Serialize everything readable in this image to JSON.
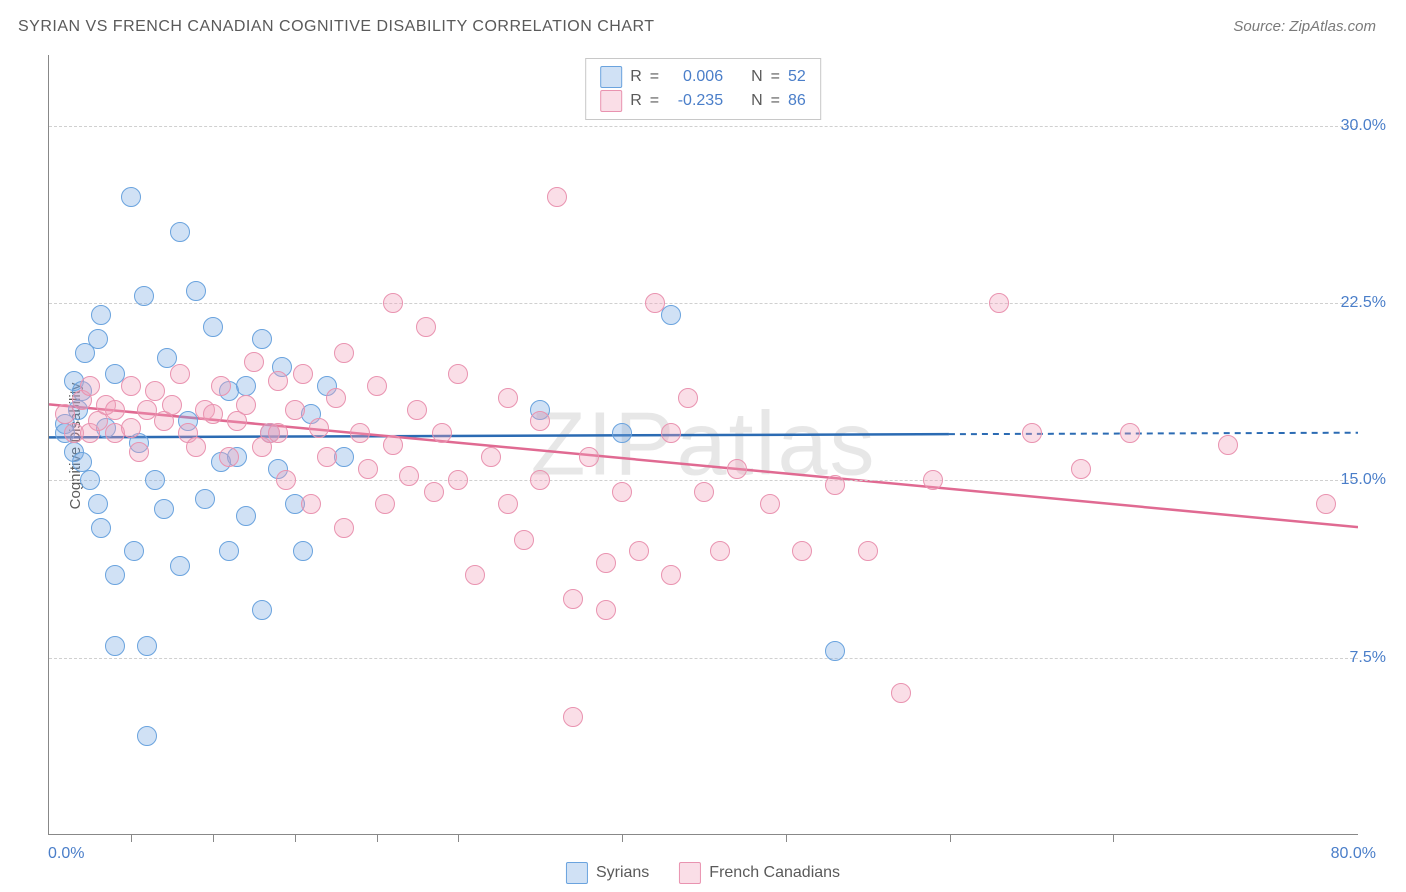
{
  "title": "SYRIAN VS FRENCH CANADIAN COGNITIVE DISABILITY CORRELATION CHART",
  "source_prefix": "Source: ",
  "source_name": "ZipAtlas.com",
  "watermark": "ZIPatlas",
  "ylabel": "Cognitive Disability",
  "chart": {
    "type": "scatter",
    "xlim": [
      0,
      80
    ],
    "ylim": [
      0,
      33
    ],
    "y_ticks": [
      7.5,
      15.0,
      22.5,
      30.0
    ],
    "y_tick_labels": [
      "7.5%",
      "15.0%",
      "22.5%",
      "30.0%"
    ],
    "x_start_label": "0.0%",
    "x_end_label": "80.0%",
    "x_minor_ticks": [
      5,
      10,
      15,
      20,
      25,
      35,
      45,
      55,
      65
    ],
    "background_color": "#ffffff",
    "grid_color": "#d0d0d0",
    "axis_color": "#888888",
    "point_radius": 10,
    "point_opacity": 0.45,
    "series": [
      {
        "name": "Syrians",
        "color_fill": "rgba(120,170,225,0.35)",
        "color_stroke": "#6aa3de",
        "trend_color": "#2b6bb3",
        "trend": {
          "y_at_xmin": 16.8,
          "y_at_xmax": 17.0,
          "solid_until_x": 55
        },
        "R": "0.006",
        "N": "52",
        "points": [
          [
            1,
            17.4
          ],
          [
            1,
            17.0
          ],
          [
            1.5,
            16.2
          ],
          [
            1.5,
            19.2
          ],
          [
            1.8,
            18.0
          ],
          [
            2,
            18.8
          ],
          [
            2,
            15.8
          ],
          [
            2.2,
            20.4
          ],
          [
            2.5,
            15.0
          ],
          [
            3,
            21.0
          ],
          [
            3,
            14.0
          ],
          [
            3.2,
            13.0
          ],
          [
            3.2,
            22.0
          ],
          [
            3.5,
            17.2
          ],
          [
            4,
            19.5
          ],
          [
            4,
            11.0
          ],
          [
            4,
            8.0
          ],
          [
            5,
            27.0
          ],
          [
            5.2,
            12.0
          ],
          [
            5.5,
            16.6
          ],
          [
            5.8,
            22.8
          ],
          [
            6,
            4.2
          ],
          [
            6,
            8.0
          ],
          [
            6.5,
            15.0
          ],
          [
            7,
            13.8
          ],
          [
            7.2,
            20.2
          ],
          [
            8,
            25.5
          ],
          [
            8,
            11.4
          ],
          [
            8.5,
            17.5
          ],
          [
            9,
            23.0
          ],
          [
            9.5,
            14.2
          ],
          [
            10,
            21.5
          ],
          [
            10.5,
            15.8
          ],
          [
            11,
            18.8
          ],
          [
            11,
            12.0
          ],
          [
            11.5,
            16.0
          ],
          [
            12,
            19.0
          ],
          [
            12,
            13.5
          ],
          [
            13,
            21.0
          ],
          [
            13,
            9.5
          ],
          [
            13.5,
            17.0
          ],
          [
            14,
            15.5
          ],
          [
            14.2,
            19.8
          ],
          [
            15,
            14.0
          ],
          [
            15.5,
            12.0
          ],
          [
            16,
            17.8
          ],
          [
            17,
            19.0
          ],
          [
            18,
            16.0
          ],
          [
            30,
            18.0
          ],
          [
            38,
            22.0
          ],
          [
            48,
            7.8
          ],
          [
            35,
            17.0
          ]
        ]
      },
      {
        "name": "French Canadians",
        "color_fill": "rgba(240,160,185,0.35)",
        "color_stroke": "#e993b0",
        "trend_color": "#e06a92",
        "trend": {
          "y_at_xmin": 18.2,
          "y_at_xmax": 13.0,
          "solid_until_x": 80
        },
        "R": "-0.235",
        "N": "86",
        "points": [
          [
            1,
            17.8
          ],
          [
            1.5,
            17.0
          ],
          [
            2,
            18.4
          ],
          [
            2.5,
            17.0
          ],
          [
            2.5,
            19.0
          ],
          [
            3,
            17.5
          ],
          [
            3.5,
            18.2
          ],
          [
            4,
            18.0
          ],
          [
            4,
            17.0
          ],
          [
            5,
            19.0
          ],
          [
            5,
            17.2
          ],
          [
            5.5,
            16.2
          ],
          [
            6,
            18.0
          ],
          [
            6.5,
            18.8
          ],
          [
            7,
            17.5
          ],
          [
            7.5,
            18.2
          ],
          [
            8,
            19.5
          ],
          [
            8.5,
            17.0
          ],
          [
            9,
            16.4
          ],
          [
            9.5,
            18.0
          ],
          [
            10,
            17.8
          ],
          [
            10.5,
            19.0
          ],
          [
            11,
            16.0
          ],
          [
            11.5,
            17.5
          ],
          [
            12,
            18.2
          ],
          [
            12.5,
            20.0
          ],
          [
            13,
            16.4
          ],
          [
            13.5,
            17.0
          ],
          [
            14,
            19.2
          ],
          [
            14,
            17.0
          ],
          [
            14.5,
            15.0
          ],
          [
            15,
            18.0
          ],
          [
            15.5,
            19.5
          ],
          [
            16,
            14.0
          ],
          [
            16.5,
            17.2
          ],
          [
            17,
            16.0
          ],
          [
            17.5,
            18.5
          ],
          [
            18,
            20.4
          ],
          [
            18,
            13.0
          ],
          [
            19,
            17.0
          ],
          [
            19.5,
            15.5
          ],
          [
            20,
            19.0
          ],
          [
            20.5,
            14.0
          ],
          [
            21,
            16.5
          ],
          [
            21,
            22.5
          ],
          [
            22,
            15.2
          ],
          [
            22.5,
            18.0
          ],
          [
            23,
            21.5
          ],
          [
            23.5,
            14.5
          ],
          [
            24,
            17.0
          ],
          [
            25,
            15.0
          ],
          [
            25,
            19.5
          ],
          [
            26,
            11.0
          ],
          [
            27,
            16.0
          ],
          [
            28,
            14.0
          ],
          [
            28,
            18.5
          ],
          [
            29,
            12.5
          ],
          [
            30,
            17.5
          ],
          [
            30,
            15.0
          ],
          [
            31,
            27.0
          ],
          [
            32,
            10.0
          ],
          [
            32,
            5.0
          ],
          [
            33,
            16.0
          ],
          [
            34,
            9.5
          ],
          [
            34,
            11.5
          ],
          [
            35,
            14.5
          ],
          [
            36,
            12.0
          ],
          [
            37,
            22.5
          ],
          [
            38,
            17.0
          ],
          [
            38,
            11.0
          ],
          [
            39,
            18.5
          ],
          [
            40,
            14.5
          ],
          [
            41,
            12.0
          ],
          [
            42,
            15.5
          ],
          [
            44,
            14.0
          ],
          [
            46,
            12.0
          ],
          [
            48,
            14.8
          ],
          [
            50,
            12.0
          ],
          [
            52,
            6.0
          ],
          [
            54,
            15.0
          ],
          [
            58,
            22.5
          ],
          [
            60,
            17.0
          ],
          [
            63,
            15.5
          ],
          [
            66,
            17.0
          ],
          [
            72,
            16.5
          ],
          [
            78,
            14.0
          ]
        ]
      }
    ]
  },
  "legend_top": {
    "r_label": "R",
    "n_label": "N",
    "eq": "="
  },
  "legend_bottom_labels": [
    "Syrians",
    "French Canadians"
  ]
}
